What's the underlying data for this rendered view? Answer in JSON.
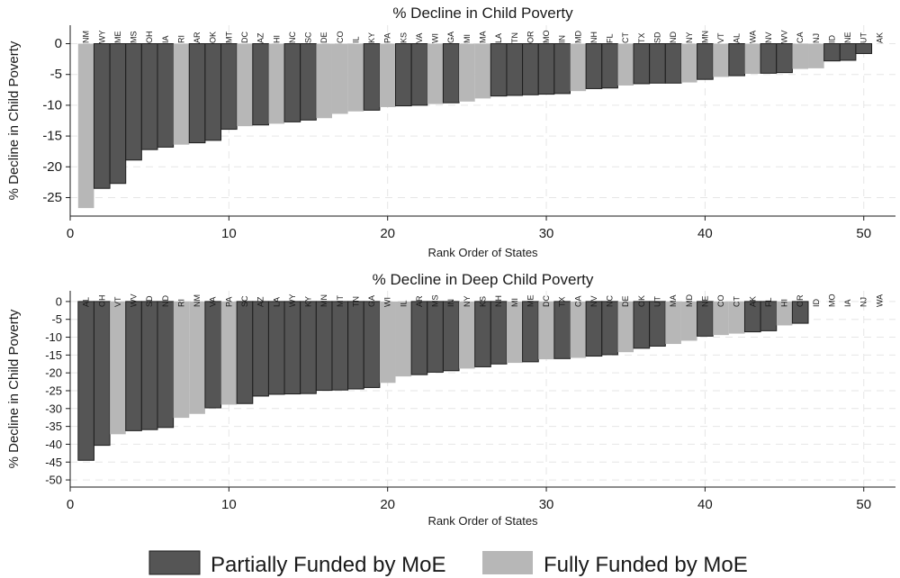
{
  "legend": [
    {
      "label": "Partially Funded by MoE",
      "key": "partial",
      "color": "#555555"
    },
    {
      "label": "Fully Funded by MoE",
      "key": "full",
      "color": "#b7b7b7"
    }
  ],
  "chart_data": [
    {
      "type": "bar",
      "title": "% Decline in Child Poverty",
      "xlabel": "Rank Order of States",
      "ylabel": "% Decline in Child Poverty",
      "xlim": [
        0,
        52
      ],
      "ylim": [
        -28,
        3
      ],
      "xticks": [
        0,
        10,
        20,
        30,
        40,
        50
      ],
      "yticks": [
        0,
        -5,
        -10,
        -15,
        -20,
        -25
      ],
      "grid": true,
      "categories": [
        "NM",
        "WY",
        "ME",
        "MS",
        "OH",
        "IA",
        "RI",
        "AR",
        "OK",
        "MT",
        "DC",
        "AZ",
        "HI",
        "NC",
        "SC",
        "DE",
        "CO",
        "IL",
        "KY",
        "PA",
        "KS",
        "VA",
        "WI",
        "GA",
        "MI",
        "MA",
        "LA",
        "TN",
        "OR",
        "MO",
        "IN",
        "MD",
        "NH",
        "FL",
        "CT",
        "TX",
        "SD",
        "ND",
        "NY",
        "MN",
        "VT",
        "AL",
        "WA",
        "NV",
        "WV",
        "CA",
        "NJ",
        "ID",
        "NE",
        "UT",
        "AK"
      ],
      "values": [
        -26.7,
        -23.5,
        -22.7,
        -18.9,
        -17.2,
        -16.8,
        -16.4,
        -16.1,
        -15.7,
        -13.9,
        -13.4,
        -13.2,
        -13.0,
        -12.7,
        -12.4,
        -12.1,
        -11.4,
        -11.0,
        -10.8,
        -10.3,
        -10.1,
        -10.0,
        -9.8,
        -9.6,
        -9.4,
        -8.9,
        -8.5,
        -8.4,
        -8.3,
        -8.2,
        -8.1,
        -7.7,
        -7.3,
        -7.2,
        -6.8,
        -6.5,
        -6.4,
        -6.4,
        -6.3,
        -5.8,
        -5.4,
        -5.2,
        -4.9,
        -4.8,
        -4.7,
        -4.1,
        -4.0,
        -2.8,
        -2.7,
        -1.6,
        0.0
      ],
      "funding": [
        "full",
        "partial",
        "partial",
        "partial",
        "partial",
        "partial",
        "full",
        "partial",
        "partial",
        "partial",
        "full",
        "partial",
        "full",
        "partial",
        "partial",
        "full",
        "full",
        "full",
        "partial",
        "full",
        "partial",
        "partial",
        "full",
        "partial",
        "full",
        "full",
        "partial",
        "partial",
        "partial",
        "partial",
        "partial",
        "full",
        "partial",
        "partial",
        "full",
        "partial",
        "partial",
        "partial",
        "full",
        "partial",
        "full",
        "partial",
        "full",
        "partial",
        "partial",
        "full",
        "full",
        "partial",
        "partial",
        "partial",
        "full"
      ]
    },
    {
      "type": "bar",
      "title": "% Decline in Deep Child Poverty",
      "xlabel": "Rank Order of States",
      "ylabel": "% Decline in Child Poverty",
      "xlim": [
        0,
        52
      ],
      "ylim": [
        -52,
        3
      ],
      "xticks": [
        0,
        10,
        20,
        30,
        40,
        50
      ],
      "yticks": [
        0,
        -5,
        -10,
        -15,
        -20,
        -25,
        -30,
        -35,
        -40,
        -45,
        -50
      ],
      "grid": true,
      "categories": [
        "AL",
        "OH",
        "VT",
        "WV",
        "SD",
        "ND",
        "RI",
        "NM",
        "VA",
        "PA",
        "SC",
        "AZ",
        "LA",
        "WY",
        "KY",
        "MN",
        "MT",
        "TN",
        "GA",
        "WI",
        "IL",
        "AR",
        "MS",
        "IN",
        "NY",
        "KS",
        "NH",
        "MI",
        "ME",
        "DC",
        "TX",
        "CA",
        "NV",
        "NC",
        "DE",
        "OK",
        "UT",
        "MA",
        "MD",
        "NE",
        "CO",
        "CT",
        "AK",
        "FL",
        "HI",
        "OR",
        "ID",
        "MO",
        "IA",
        "NJ",
        "WA"
      ],
      "values": [
        -44.5,
        -40.3,
        -37.2,
        -36.2,
        -35.9,
        -35.3,
        -32.6,
        -31.5,
        -29.8,
        -28.9,
        -28.6,
        -26.5,
        -26.0,
        -25.9,
        -25.8,
        -24.9,
        -24.8,
        -24.5,
        -24.1,
        -22.8,
        -21.0,
        -20.5,
        -19.8,
        -19.4,
        -18.8,
        -18.3,
        -17.5,
        -17.2,
        -16.9,
        -16.2,
        -16.0,
        -15.8,
        -15.3,
        -14.9,
        -14.2,
        -13.1,
        -12.5,
        -11.9,
        -11.0,
        -9.7,
        -9.4,
        -9.0,
        -8.5,
        -8.2,
        -6.7,
        -6.1,
        0.0,
        0.0,
        0.0,
        0.0,
        0.0
      ],
      "funding": [
        "partial",
        "partial",
        "full",
        "partial",
        "partial",
        "partial",
        "full",
        "full",
        "partial",
        "full",
        "partial",
        "partial",
        "partial",
        "partial",
        "partial",
        "partial",
        "partial",
        "partial",
        "partial",
        "full",
        "full",
        "partial",
        "partial",
        "partial",
        "full",
        "partial",
        "partial",
        "full",
        "partial",
        "full",
        "partial",
        "full",
        "partial",
        "partial",
        "full",
        "partial",
        "partial",
        "full",
        "full",
        "partial",
        "full",
        "full",
        "partial",
        "partial",
        "full",
        "partial",
        "full",
        "full",
        "full",
        "full",
        "full"
      ]
    }
  ]
}
